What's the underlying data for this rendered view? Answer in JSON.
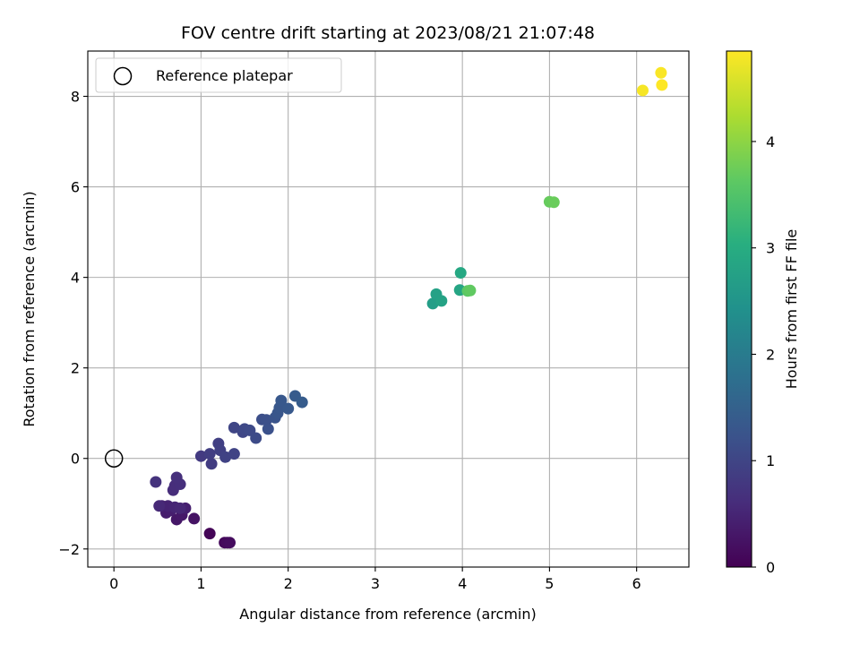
{
  "chart_data": {
    "type": "scatter",
    "title": "FOV centre drift starting at 2023/08/21 21:07:48",
    "xlabel": "Angular distance from reference (arcmin)",
    "ylabel": "Rotation from reference (arcmin)",
    "xlim": [
      -0.3,
      6.6
    ],
    "ylim": [
      -2.4,
      9.0
    ],
    "xticks": [
      0,
      1,
      2,
      3,
      4,
      5,
      6
    ],
    "yticks": [
      -2,
      0,
      2,
      4,
      6,
      8
    ],
    "xtick_labels": [
      "0",
      "1",
      "2",
      "3",
      "4",
      "5",
      "6"
    ],
    "ytick_labels": [
      "−2",
      "0",
      "2",
      "4",
      "6",
      "8"
    ],
    "grid": true,
    "legend": {
      "placement": "top-left",
      "entries": [
        {
          "label": "Reference platepar",
          "marker": "hollow-circle"
        }
      ]
    },
    "reference_point": {
      "x": 0,
      "y": 0
    },
    "colorbar": {
      "label": "Hours from first FF file",
      "colormap": "viridis",
      "min": 0,
      "max": 4.85,
      "ticks": [
        0,
        1,
        2,
        3,
        4
      ],
      "tick_labels": [
        "0",
        "1",
        "2",
        "3",
        "4"
      ]
    },
    "points": [
      {
        "x": 1.1,
        "y": -1.66,
        "c": 0.05
      },
      {
        "x": 1.27,
        "y": -1.86,
        "c": 0.1
      },
      {
        "x": 1.3,
        "y": -1.86,
        "c": 0.12
      },
      {
        "x": 1.33,
        "y": -1.86,
        "c": 0.15
      },
      {
        "x": 0.92,
        "y": -1.33,
        "c": 0.25
      },
      {
        "x": 0.72,
        "y": -1.35,
        "c": 0.3
      },
      {
        "x": 0.78,
        "y": -1.25,
        "c": 0.32
      },
      {
        "x": 0.6,
        "y": -1.2,
        "c": 0.38
      },
      {
        "x": 0.65,
        "y": -1.15,
        "c": 0.4
      },
      {
        "x": 0.82,
        "y": -1.1,
        "c": 0.42
      },
      {
        "x": 0.55,
        "y": -1.05,
        "c": 0.45
      },
      {
        "x": 0.62,
        "y": -1.05,
        "c": 0.47
      },
      {
        "x": 0.7,
        "y": -1.08,
        "c": 0.5
      },
      {
        "x": 0.76,
        "y": -1.1,
        "c": 0.52
      },
      {
        "x": 0.52,
        "y": -1.05,
        "c": 0.55
      },
      {
        "x": 0.68,
        "y": -0.7,
        "c": 0.6
      },
      {
        "x": 0.7,
        "y": -0.6,
        "c": 0.62
      },
      {
        "x": 0.76,
        "y": -0.57,
        "c": 0.64
      },
      {
        "x": 0.72,
        "y": -0.42,
        "c": 0.66
      },
      {
        "x": 0.48,
        "y": -0.52,
        "c": 0.7
      },
      {
        "x": 1.0,
        "y": 0.05,
        "c": 0.82
      },
      {
        "x": 1.12,
        "y": -0.12,
        "c": 0.85
      },
      {
        "x": 1.1,
        "y": 0.1,
        "c": 0.88
      },
      {
        "x": 1.2,
        "y": 0.33,
        "c": 0.9
      },
      {
        "x": 1.22,
        "y": 0.18,
        "c": 0.92
      },
      {
        "x": 1.28,
        "y": 0.03,
        "c": 0.95
      },
      {
        "x": 1.38,
        "y": 0.1,
        "c": 0.97
      },
      {
        "x": 1.38,
        "y": 0.68,
        "c": 1.0
      },
      {
        "x": 1.48,
        "y": 0.58,
        "c": 1.02
      },
      {
        "x": 1.5,
        "y": 0.65,
        "c": 1.05
      },
      {
        "x": 1.56,
        "y": 0.62,
        "c": 1.08
      },
      {
        "x": 1.63,
        "y": 0.45,
        "c": 1.1
      },
      {
        "x": 1.7,
        "y": 0.86,
        "c": 1.15
      },
      {
        "x": 1.75,
        "y": 0.85,
        "c": 1.18
      },
      {
        "x": 1.77,
        "y": 0.65,
        "c": 1.2
      },
      {
        "x": 1.85,
        "y": 0.9,
        "c": 1.25
      },
      {
        "x": 1.88,
        "y": 1.0,
        "c": 1.28
      },
      {
        "x": 1.9,
        "y": 1.12,
        "c": 1.3
      },
      {
        "x": 1.92,
        "y": 1.28,
        "c": 1.32
      },
      {
        "x": 2.0,
        "y": 1.1,
        "c": 1.35
      },
      {
        "x": 2.08,
        "y": 1.38,
        "c": 1.38
      },
      {
        "x": 2.16,
        "y": 1.24,
        "c": 1.4
      },
      {
        "x": 3.66,
        "y": 3.42,
        "c": 2.7
      },
      {
        "x": 3.7,
        "y": 3.63,
        "c": 2.75
      },
      {
        "x": 3.76,
        "y": 3.48,
        "c": 2.78
      },
      {
        "x": 3.97,
        "y": 3.72,
        "c": 2.85
      },
      {
        "x": 3.98,
        "y": 4.1,
        "c": 2.9
      },
      {
        "x": 4.06,
        "y": 3.7,
        "c": 3.6
      },
      {
        "x": 4.09,
        "y": 3.71,
        "c": 3.65
      },
      {
        "x": 5.0,
        "y": 5.67,
        "c": 3.7
      },
      {
        "x": 5.05,
        "y": 5.66,
        "c": 3.72
      },
      {
        "x": 6.07,
        "y": 8.13,
        "c": 4.8
      },
      {
        "x": 6.28,
        "y": 8.52,
        "c": 4.82
      },
      {
        "x": 6.29,
        "y": 8.25,
        "c": 4.85
      }
    ]
  }
}
